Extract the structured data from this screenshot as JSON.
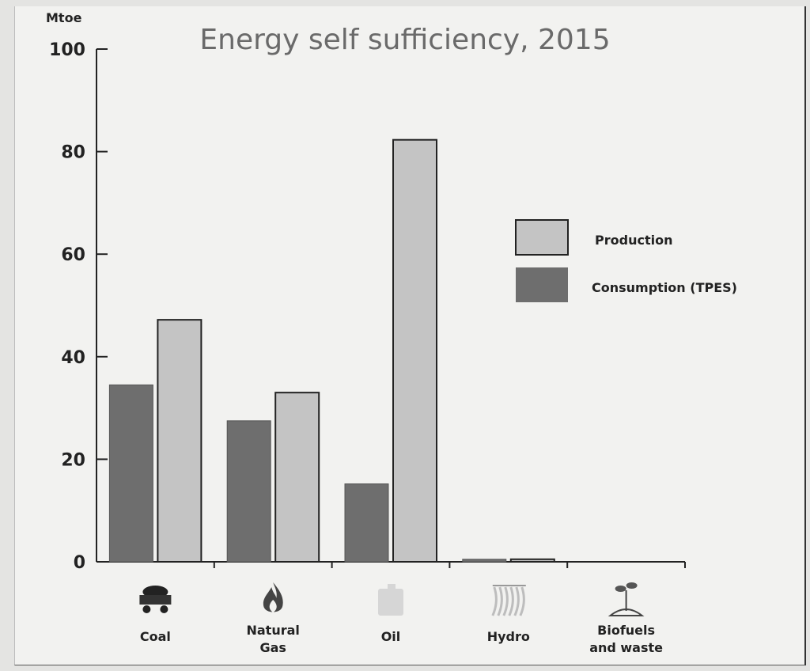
{
  "chart_data": {
    "type": "bar",
    "title": "Energy self sufficiency, 2015",
    "unit_label": "Mtoe",
    "ylim": [
      0,
      100
    ],
    "yticks": [
      0,
      20,
      40,
      60,
      80,
      100
    ],
    "categories": [
      "Coal",
      "Natural Gas",
      "Oil",
      "Hydro",
      "Biofuels and waste"
    ],
    "category_lines": [
      [
        "Coal"
      ],
      [
        "Natural",
        "Gas"
      ],
      [
        "Oil"
      ],
      [
        "Hydro"
      ],
      [
        "Biofuels",
        "and waste"
      ]
    ],
    "category_icons": [
      "coal-cart-icon",
      "flame-icon",
      "oil-canister-icon",
      "hydro-waterfall-icon",
      "biofuels-plant-icon"
    ],
    "series": [
      {
        "name": "Consumption (TPES)",
        "color": "#6e6e6e",
        "values": [
          34.5,
          27.5,
          15.2,
          0.5,
          0
        ]
      },
      {
        "name": "Production",
        "color": "#c4c4c4",
        "values": [
          47.2,
          33,
          82.3,
          0.5,
          0
        ]
      }
    ],
    "legend": [
      "Production",
      "Consumption (TPES)"
    ],
    "legend_placement": "top-right",
    "grid": false
  }
}
